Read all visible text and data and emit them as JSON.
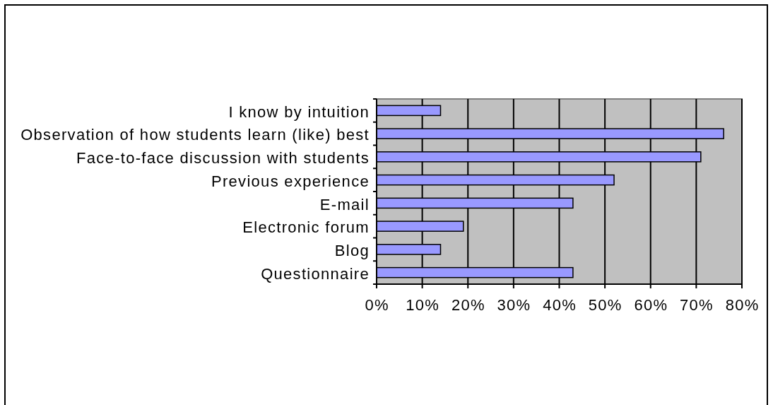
{
  "chart_data": {
    "type": "bar",
    "orientation": "horizontal",
    "categories": [
      "I know by intuition",
      "Observation of how students learn (like) best",
      "Face-to-face discussion with students",
      "Previous experience",
      "E-mail",
      "Electronic forum",
      "Blog",
      "Questionnaire"
    ],
    "values": [
      14,
      76,
      71,
      52,
      43,
      19,
      14,
      43
    ],
    "color": "#9999ff",
    "xlim": [
      0,
      80
    ],
    "xticks": [
      {
        "value": 0,
        "label": "0%"
      },
      {
        "value": 10,
        "label": "10%"
      },
      {
        "value": 20,
        "label": "20%"
      },
      {
        "value": 30,
        "label": "30%"
      },
      {
        "value": 40,
        "label": "40%"
      },
      {
        "value": 50,
        "label": "50%"
      },
      {
        "value": 60,
        "label": "60%"
      },
      {
        "value": 70,
        "label": "70%"
      },
      {
        "value": 80,
        "label": "80%"
      }
    ],
    "grid": "x"
  }
}
